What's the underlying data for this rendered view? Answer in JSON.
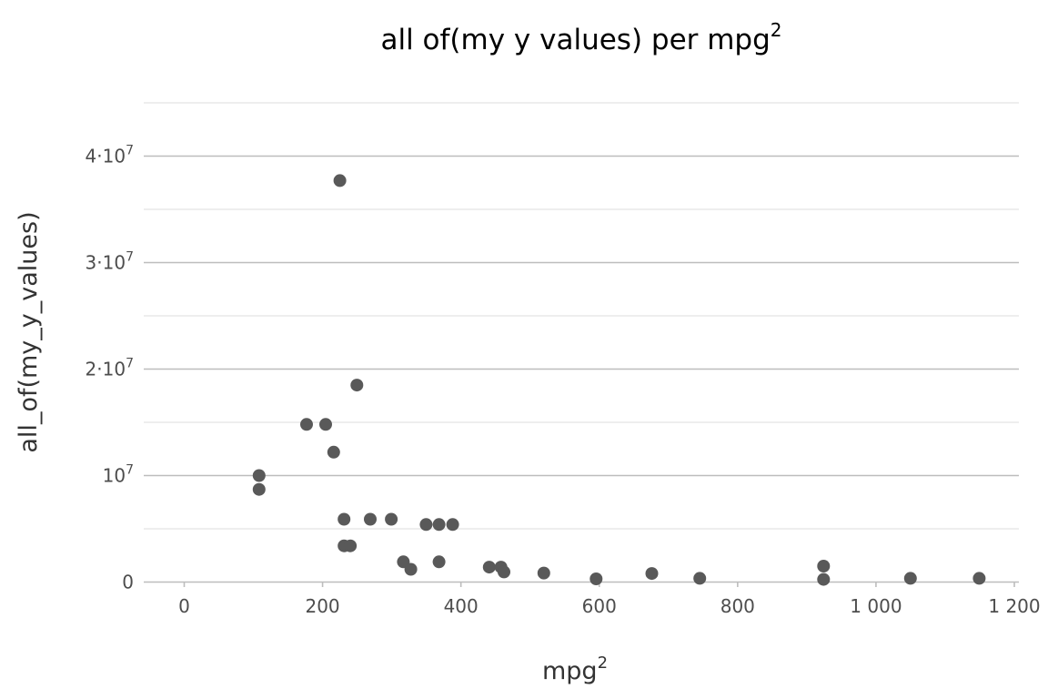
{
  "chart_data": {
    "type": "scatter",
    "title": {
      "main": "all of(my y values) per mpg",
      "superscript": "2"
    },
    "xlabel": {
      "main": "mpg",
      "superscript": "2"
    },
    "ylabel": "all_of(my_y_values)",
    "xlim": [
      -60,
      1200
    ],
    "ylim": [
      0,
      45000000
    ],
    "x_ticks": [
      {
        "value": 0,
        "label": "0"
      },
      {
        "value": 200,
        "label": "200"
      },
      {
        "value": 400,
        "label": "400"
      },
      {
        "value": 600,
        "label": "600"
      },
      {
        "value": 800,
        "label": "800"
      },
      {
        "value": 1000,
        "label": "1 000"
      },
      {
        "value": 1200,
        "label": "1 200"
      }
    ],
    "y_ticks": [
      {
        "value": 0,
        "mantissa": "0",
        "exponent": ""
      },
      {
        "value": 10000000,
        "mantissa": "10",
        "exponent": "7"
      },
      {
        "value": 20000000,
        "mantissa": "2·10",
        "exponent": "7"
      },
      {
        "value": 30000000,
        "mantissa": "3·10",
        "exponent": "7"
      },
      {
        "value": 40000000,
        "mantissa": "4·10",
        "exponent": "7"
      }
    ],
    "y_minor_ticks": [
      5000000,
      15000000,
      25000000,
      35000000,
      45000000
    ],
    "grid": true,
    "point_color": "#595959",
    "series": [
      {
        "x": [
          108.2,
          108.2,
          176.9,
          204.5,
          216.1,
          225,
          231,
          231,
          240.1,
          249.6,
          268.9,
          299.3,
          316.8,
          327.6,
          349.7,
          368.4,
          368.4,
          388.1,
          441,
          457.9,
          462.3,
          519.8,
          595.4,
          676,
          745.3,
          924.2,
          924.2,
          1049.8,
          1149.2
        ],
        "y": [
          10000000,
          8700000,
          14800000,
          14800000,
          12200000,
          37700000,
          5900000,
          3400000,
          3400000,
          18500000,
          5900000,
          5900000,
          1900000,
          1200000,
          5400000,
          5400000,
          1900000,
          5400000,
          1400000,
          1400000,
          950000,
          850000,
          300000,
          800000,
          350000,
          1500000,
          250000,
          350000,
          350000
        ]
      }
    ]
  }
}
